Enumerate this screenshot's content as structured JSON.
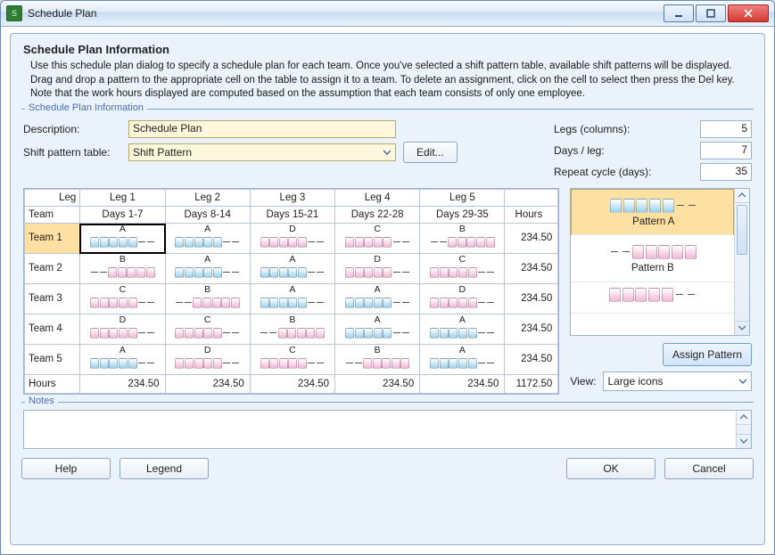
{
  "window": {
    "title": "Schedule Plan"
  },
  "header": {
    "title": "Schedule Plan Information",
    "description": "Use this schedule plan dialog to specify a schedule plan for each team. Once you've selected a shift pattern table, available shift patterns will be displayed. Drag and drop a pattern to the appropriate cell on the table to assign it to a team. To delete an assignment, click on the cell to select then press the Del key. Note that the work hours displayed are computed based on the assumption that each team consists of only one employee."
  },
  "fieldset1": {
    "legend": "Schedule Plan Information"
  },
  "form": {
    "description_label": "Description:",
    "description_value": "Schedule Plan",
    "pattern_table_label": "Shift pattern table:",
    "pattern_table_value": "Shift Pattern",
    "edit_button": "Edit...",
    "legs_label": "Legs (columns):",
    "legs_value": "5",
    "days_per_leg_label": "Days / leg:",
    "days_per_leg_value": "7",
    "repeat_cycle_label": "Repeat cycle (days):",
    "repeat_cycle_value": "35"
  },
  "patterns": {
    "A": {
      "label": "A",
      "color": "#9ad3ef",
      "days": [
        1,
        1,
        1,
        1,
        1,
        0,
        0
      ]
    },
    "B": {
      "label": "B",
      "color": "#f6b6d7",
      "days": [
        0,
        0,
        1,
        1,
        1,
        1,
        1
      ]
    },
    "C": {
      "label": "C",
      "color": "#f6b6d7",
      "days": [
        1,
        1,
        1,
        1,
        1,
        0,
        0
      ]
    },
    "D": {
      "label": "D",
      "color": "#f6b6d7",
      "days": [
        1,
        1,
        1,
        1,
        1,
        0,
        0
      ]
    }
  },
  "table": {
    "leg_header": "Leg",
    "team_header": "Team",
    "hours_header": "Hours",
    "hours_footer_label": "Hours",
    "legs": [
      {
        "name": "Leg 1",
        "days": "Days 1-7"
      },
      {
        "name": "Leg 2",
        "days": "Days 8-14"
      },
      {
        "name": "Leg 3",
        "days": "Days 15-21"
      },
      {
        "name": "Leg 4",
        "days": "Days 22-28"
      },
      {
        "name": "Leg 5",
        "days": "Days 29-35"
      }
    ],
    "teams": [
      {
        "name": "Team 1",
        "cells": [
          "A",
          "A",
          "D",
          "C",
          "B"
        ],
        "hours": "234.50"
      },
      {
        "name": "Team 2",
        "cells": [
          "B",
          "A",
          "A",
          "D",
          "C"
        ],
        "hours": "234.50"
      },
      {
        "name": "Team 3",
        "cells": [
          "C",
          "B",
          "A",
          "A",
          "D"
        ],
        "hours": "234.50"
      },
      {
        "name": "Team 4",
        "cells": [
          "D",
          "C",
          "B",
          "A",
          "A"
        ],
        "hours": "234.50"
      },
      {
        "name": "Team 5",
        "cells": [
          "A",
          "D",
          "C",
          "B",
          "A"
        ],
        "hours": "234.50"
      }
    ],
    "col_hours": [
      "234.50",
      "234.50",
      "234.50",
      "234.50",
      "234.50"
    ],
    "total_hours": "1172.50",
    "selected": {
      "row": 0,
      "col": 0
    }
  },
  "palette": {
    "items": [
      {
        "key": "A",
        "label": "Pattern A",
        "selected": true
      },
      {
        "key": "B",
        "label": "Pattern B",
        "selected": false
      }
    ],
    "assign_button": "Assign Pattern",
    "view_label": "View:",
    "view_value": "Large icons"
  },
  "notes": {
    "legend": "Notes"
  },
  "buttons": {
    "help": "Help",
    "legend": "Legend",
    "ok": "OK",
    "cancel": "Cancel"
  },
  "colors": {
    "panel_bg": "#eaf2fb",
    "field_bg": "#fdf7dc",
    "highlight": "#ffe0a3",
    "blue_box": "#9ad3ef",
    "pink_box": "#f6b6d7"
  }
}
